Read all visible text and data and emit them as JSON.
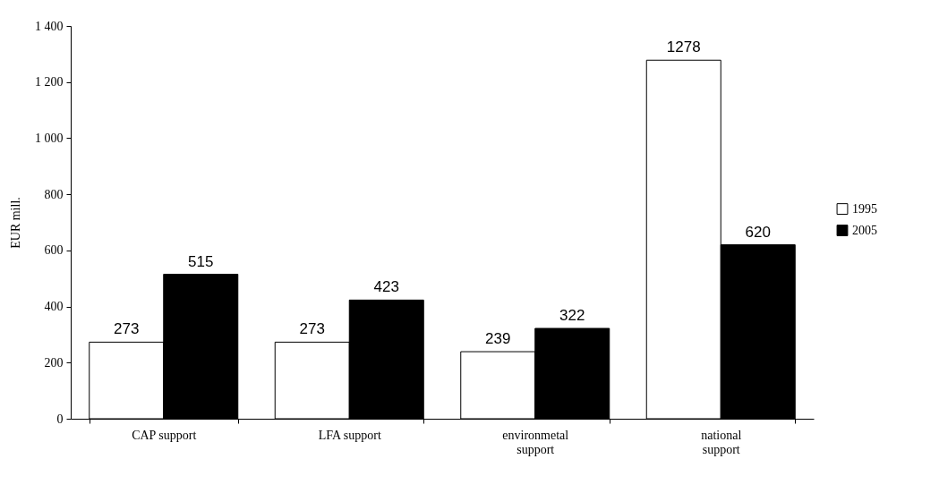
{
  "chart_data": {
    "type": "bar",
    "ylabel": "EUR mill.",
    "categories": [
      "CAP support",
      "LFA support",
      "environmetal support",
      "national support"
    ],
    "series": [
      {
        "name": "1995",
        "color": "#ffffff",
        "values": [
          273,
          273,
          239,
          1278
        ]
      },
      {
        "name": "2005",
        "color": "#000000",
        "values": [
          515,
          423,
          322,
          620
        ]
      }
    ],
    "ylim": [
      0,
      1400
    ],
    "yticks": [
      0,
      200,
      400,
      600,
      800,
      {
        "value": 1000,
        "label": "1 000"
      },
      {
        "value": 1200,
        "label": "1 200"
      },
      {
        "value": 1400,
        "label": "1 400"
      }
    ],
    "grid": false,
    "legend": "right",
    "data_labels": true
  }
}
